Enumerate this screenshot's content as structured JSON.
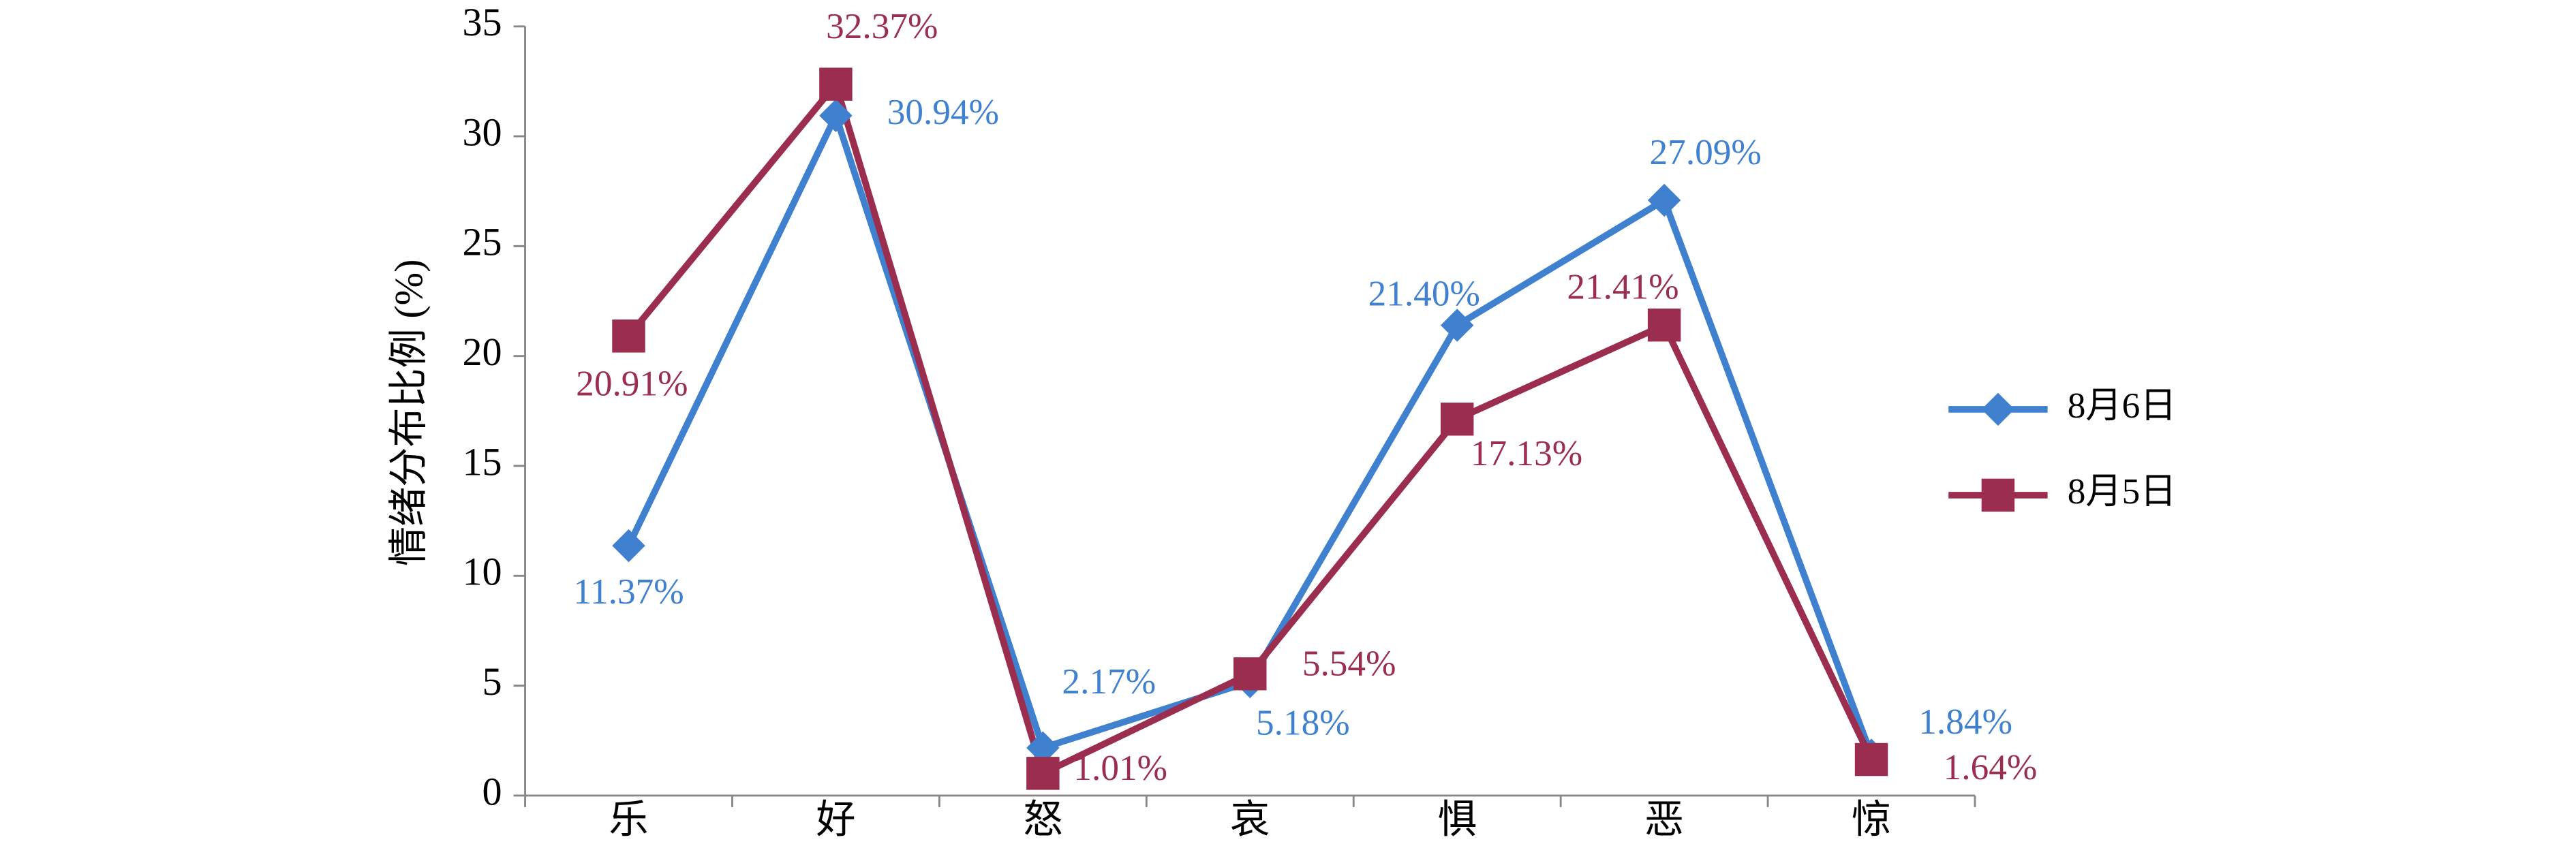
{
  "chart_data": {
    "type": "line",
    "y_label": "情绪分布比例 (%)",
    "categories": [
      "乐",
      "好",
      "怒",
      "哀",
      "惧",
      "恶",
      "惊"
    ],
    "series": [
      {
        "name": "8月6日",
        "color": "#3f80cf",
        "marker": "diamond",
        "values": [
          11.37,
          30.94,
          2.17,
          5.18,
          21.4,
          27.09,
          1.84
        ],
        "value_labels": [
          "11.37%",
          "30.94%",
          "2.17%",
          "5.18%",
          "21.40%",
          "27.09%",
          "1.84%"
        ]
      },
      {
        "name": "8月5日",
        "color": "#9b2d4f",
        "marker": "square",
        "values": [
          20.91,
          32.37,
          1.01,
          5.54,
          17.13,
          21.41,
          1.64
        ],
        "value_labels": [
          "20.91%",
          "32.37%",
          "1.01%",
          "5.54%",
          "17.13%",
          "21.41%",
          "1.64%"
        ]
      }
    ],
    "ylim": [
      0,
      35
    ],
    "yticks": [
      0,
      5,
      10,
      15,
      20,
      25,
      30,
      35
    ],
    "grid": false,
    "legend": "right"
  }
}
